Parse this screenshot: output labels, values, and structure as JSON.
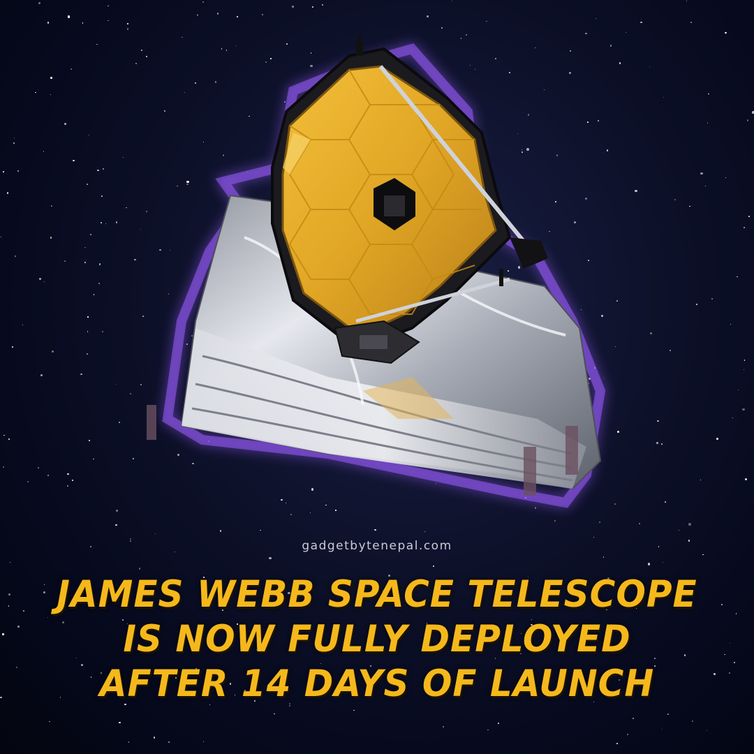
{
  "watermark": "gadgetbytenepal.com",
  "headline": {
    "line1": "JAMES WEBB SPACE TELESCOPE",
    "line2": "IS NOW FULLY DEPLOYED",
    "line3": "AFTER 14 DAYS OF LAUNCH"
  },
  "colors": {
    "headline": "#f5b81c",
    "mirror_gold": "#e0a524",
    "sunshield_silver": "#c4c7cf",
    "glow": "#9a5cff",
    "background": "#060a1a"
  },
  "image": {
    "subject": "telescope-illustration"
  }
}
